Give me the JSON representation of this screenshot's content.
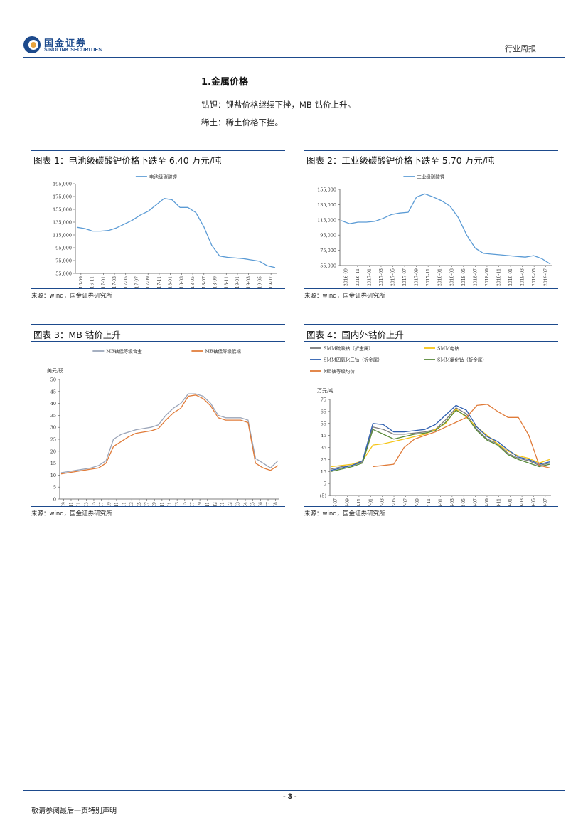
{
  "header": {
    "brand_cn": "国金证券",
    "brand_en": "SINOLINK SECURITIES",
    "report_type": "行业周报",
    "colors": {
      "brand": "#1d4a8c",
      "accent": "#7fb3e0",
      "gold": "#e8a33c"
    }
  },
  "section": {
    "title": "1.金属价格",
    "lines": [
      "钴锂：锂盐价格继续下挫，MB 钴价上升。",
      "稀土：稀土价格下挫。"
    ]
  },
  "figures": [
    {
      "title": "图表 1：电池级碳酸锂价格下跌至 6.40 万元/吨",
      "source": "来源：wind，国金证券研究所"
    },
    {
      "title": "图表 2：工业级碳酸锂价格下跌至 5.70 万元/吨",
      "source": "来源：wind，国金证券研究所"
    },
    {
      "title": "图表 3：MB 钴价上升",
      "source": "来源：wind，国金证券研究所"
    },
    {
      "title": "图表 4：国内外钴价上升",
      "source": "来源：wind，国金证券研究所"
    }
  ],
  "chart_data": [
    {
      "type": "line",
      "legend": [
        "电池级碳酸锂"
      ],
      "yticks": [
        "55,000",
        "75,000",
        "95,000",
        "115,000",
        "135,000",
        "155,000",
        "175,000",
        "195,000"
      ],
      "ylim": [
        55000,
        195000
      ],
      "xticks": [
        "2016-09",
        "2016-11",
        "2017-01",
        "2017-03",
        "2017-05",
        "2017-07",
        "2017-09",
        "2017-11",
        "2018-01",
        "2018-03",
        "2018-05",
        "2018-07",
        "2018-09",
        "2018-11",
        "2019-01",
        "2019-03",
        "2019-05",
        "2019-07"
      ],
      "series": [
        {
          "name": "电池级碳酸锂",
          "color": "#5b9bd5",
          "values": [
            127000,
            125000,
            121000,
            121000,
            122000,
            126000,
            132000,
            138000,
            146000,
            152000,
            162000,
            172000,
            170000,
            158000,
            158000,
            150000,
            128000,
            99000,
            82000,
            80000,
            79000,
            78000,
            76000,
            74000,
            67000,
            64000
          ]
        }
      ]
    },
    {
      "type": "line",
      "legend": [
        "工业级碳酸锂"
      ],
      "yticks": [
        "55,000",
        "75,000",
        "95,000",
        "115,000",
        "135,000",
        "155,000"
      ],
      "ylim": [
        55000,
        155000
      ],
      "xticks": [
        "2016-09",
        "2016-11",
        "2017-01",
        "2017-03",
        "2017-05",
        "2017-07",
        "2017-09",
        "2017-11",
        "2018-01",
        "2018-03",
        "2018-05",
        "2018-07",
        "2018-09",
        "2018-11",
        "2019-01",
        "2019-03",
        "2019-05",
        "2019-07"
      ],
      "series": [
        {
          "name": "工业级碳酸锂",
          "color": "#5b9bd5",
          "values": [
            114000,
            110000,
            112000,
            112000,
            113000,
            117000,
            122000,
            124000,
            125000,
            145000,
            149000,
            145000,
            140000,
            133000,
            118000,
            95000,
            78000,
            71000,
            70000,
            69000,
            68000,
            67000,
            66000,
            68000,
            64000,
            57000
          ]
        }
      ]
    },
    {
      "type": "line",
      "unit": "美元/磅",
      "legend": [
        "MB钴低等级合金",
        "MB钴低等级低端"
      ],
      "yticks": [
        "0",
        "5",
        "10",
        "15",
        "20",
        "25",
        "30",
        "35",
        "40",
        "45",
        "50"
      ],
      "ylim": [
        0,
        50
      ],
      "xticks": [
        "2016-09",
        "2016-11",
        "2017-01",
        "2017-03",
        "2017-05",
        "2017-07",
        "2017-09",
        "2017-11",
        "2018-01",
        "2018-03",
        "2018-05",
        "2018-07",
        "2018-09",
        "2018-11",
        "2019-01",
        "2019-03",
        "2019-05",
        "2019-07",
        "2019-09",
        "2019-11",
        "2019-12",
        "2020-01",
        "2020-02",
        "2020-03",
        "2020-04",
        "2020-05",
        "2020-06",
        "2020-07",
        "2020-08"
      ],
      "series": [
        {
          "name": "MB钴低等级合金",
          "color": "#9aa4b8",
          "values": [
            11,
            11.5,
            12,
            12.5,
            13,
            14,
            16,
            25,
            27,
            28,
            29,
            29.5,
            30,
            31,
            35,
            38,
            40,
            44,
            44,
            43,
            40,
            35,
            34,
            34,
            34,
            33,
            17,
            15,
            13,
            16
          ]
        },
        {
          "name": "MB钴低等级低端",
          "color": "#e07b39",
          "values": [
            10.5,
            11,
            11.5,
            12,
            12.5,
            13,
            15,
            22,
            24,
            26,
            27.5,
            28,
            28.5,
            29.5,
            33,
            36,
            38,
            43,
            43.5,
            42,
            39,
            34,
            33,
            33,
            33,
            32,
            15,
            13,
            12,
            14
          ]
        }
      ]
    },
    {
      "type": "line",
      "unit": "万元/吨",
      "legend": [
        "SMM硫酸钴（折金属）",
        "SMM电钴",
        "SMM四氧化三钴（折金属）",
        "SMM氯化钴（折金属）",
        "MB钴等级均价"
      ],
      "yticks": [
        "(5)",
        "5",
        "15",
        "25",
        "35",
        "45",
        "55",
        "65",
        "75"
      ],
      "ylim": [
        -5,
        75
      ],
      "xticks": [
        "2016-07",
        "2016-09",
        "2016-11",
        "2017-01",
        "2017-03",
        "2017-05",
        "2017-07",
        "2017-09",
        "2017-11",
        "2018-01",
        "2018-03",
        "2018-05",
        "2018-07",
        "2018-09",
        "2018-11",
        "2019-01",
        "2019-03",
        "2019-05",
        "2019-07"
      ],
      "series": [
        {
          "name": "SMM硫酸钴（折金属）",
          "color": "#7a7a7a",
          "values": [
            17,
            19,
            20,
            23,
            52,
            50,
            46,
            46,
            47,
            48,
            50,
            58,
            68,
            63,
            50,
            42,
            38,
            30,
            26,
            24,
            20,
            22
          ]
        },
        {
          "name": "SMM电钴",
          "color": "#f5c518",
          "values": [
            19,
            20,
            21,
            24,
            37,
            38,
            40,
            42,
            44,
            46,
            50,
            55,
            67,
            60,
            52,
            45,
            38,
            32,
            28,
            26,
            22,
            25
          ]
        },
        {
          "name": "SMM四氧化三钴（折金属）",
          "color": "#2e5fb0",
          "values": [
            16,
            18,
            20,
            24,
            55,
            54,
            48,
            48,
            49,
            50,
            54,
            62,
            70,
            66,
            52,
            44,
            40,
            33,
            27,
            25,
            21,
            23
          ]
        },
        {
          "name": "SMM氯化钴（折金属）",
          "color": "#5a8a3a",
          "values": [
            15,
            17,
            19,
            22,
            50,
            46,
            42,
            44,
            46,
            47,
            49,
            56,
            66,
            61,
            49,
            41,
            37,
            29,
            25,
            22,
            19,
            21
          ]
        },
        {
          "name": "MB钴等级均价",
          "color": "#e07b39",
          "values": [
            null,
            null,
            null,
            null,
            19,
            20,
            21,
            35,
            42,
            45,
            48,
            52,
            56,
            60,
            70,
            71,
            65,
            60,
            60,
            45,
            20,
            18
          ]
        }
      ]
    }
  ],
  "footer": {
    "page": "- 3 -",
    "notice": "敬请参阅最后一页特别声明"
  }
}
